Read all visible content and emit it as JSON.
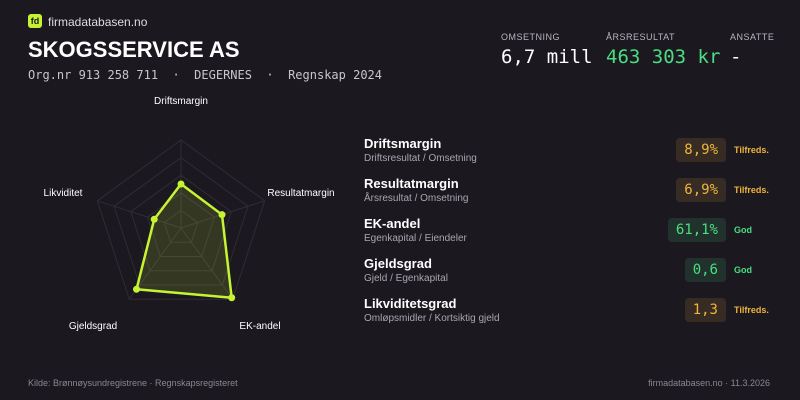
{
  "brand": "firmadatabasen.no",
  "company": {
    "name": "SKOGSSERVICE AS",
    "subline": "Org.nr 913 258 711  ·  DEGERNES  ·  Regnskap 2024"
  },
  "stats": [
    {
      "label": "OMSETNING",
      "value": "6,7 mill",
      "color": "#ffffff"
    },
    {
      "label": "ÅRSRESULTAT",
      "value": "463 303 kr",
      "color": "#4ade80"
    },
    {
      "label": "ANSATTE",
      "value": "-",
      "color": "#ffffff"
    }
  ],
  "radar": {
    "axes": [
      "Driftsmargin",
      "Resultatmargin",
      "EK-andel",
      "Gjeldsgrad",
      "Likviditet"
    ],
    "values": [
      0.5,
      0.49,
      0.98,
      0.86,
      0.32
    ],
    "rlim": [
      0,
      1
    ],
    "color": "#c6f432"
  },
  "metrics": [
    {
      "name": "Driftsmargin",
      "formula": "Driftsresultat / Omsetning",
      "value": "8,9%",
      "status": "Tilfreds.",
      "color": "#f0b43c"
    },
    {
      "name": "Resultatmargin",
      "formula": "Årsresultat / Omsetning",
      "value": "6,9%",
      "status": "Tilfreds.",
      "color": "#f0b43c"
    },
    {
      "name": "EK-andel",
      "formula": "Egenkapital / Eiendeler",
      "value": "61,1%",
      "status": "God",
      "color": "#4ade80"
    },
    {
      "name": "Gjeldsgrad",
      "formula": "Gjeld / Egenkapital",
      "value": "0,6",
      "status": "God",
      "color": "#4ade80"
    },
    {
      "name": "Likviditetsgrad",
      "formula": "Omløpsmidler / Kortsiktig gjeld",
      "value": "1,3",
      "status": "Tilfreds.",
      "color": "#f0b43c"
    }
  ],
  "footer": {
    "source": "Kilde: Brønnøysundregistrene · Regnskapsregisteret",
    "site": "firmadatabasen.no · 11.3.2026"
  }
}
